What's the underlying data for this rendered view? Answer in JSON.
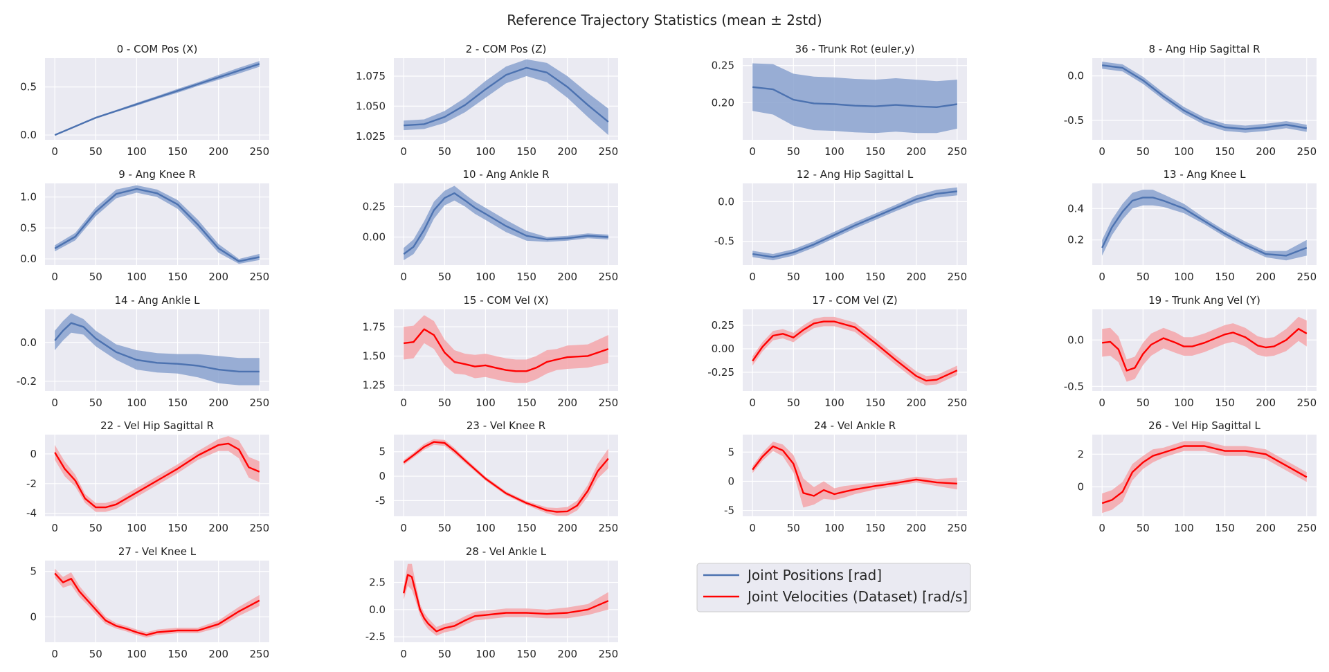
{
  "figure": {
    "title": "Reference Trajectory Statistics (mean ± 2std)"
  },
  "colors": {
    "positions_line": "#4c72b0",
    "positions_band": "#8aa2cf",
    "velocities_line": "#ff0000",
    "velocities_band": "#f4a6aa",
    "axes_background": "#eaeaf2",
    "grid": "#ffffff"
  },
  "legend": {
    "placement": "grid cell row 5, column 3",
    "entries": [
      {
        "label": "Joint Positions [rad]",
        "kind": "positions"
      },
      {
        "label": "Joint Velocities (Dataset) [rad/s]",
        "kind": "velocities"
      }
    ]
  },
  "chart_data": [
    {
      "type": "line",
      "title": "0 - COM Pos (X)",
      "kind": "positions",
      "xlim": [
        -12,
        262
      ],
      "ylim": [
        -0.05,
        0.8
      ],
      "xticks": [
        "0",
        "50",
        "100",
        "150",
        "200",
        "250"
      ],
      "yticks": [
        "0.0",
        "0.5"
      ],
      "x": [
        0,
        25,
        50,
        75,
        100,
        125,
        150,
        175,
        200,
        225,
        250
      ],
      "mean": [
        0.0,
        0.09,
        0.18,
        0.25,
        0.32,
        0.39,
        0.46,
        0.53,
        0.6,
        0.67,
        0.74
      ],
      "std2": [
        0.0,
        0.005,
        0.01,
        0.01,
        0.015,
        0.015,
        0.02,
        0.02,
        0.025,
        0.03,
        0.03
      ]
    },
    {
      "type": "line",
      "title": "2 - COM Pos (Z)",
      "kind": "positions",
      "xlim": [
        -12,
        262
      ],
      "ylim": [
        1.022,
        1.09
      ],
      "xticks": [
        "0",
        "50",
        "100",
        "150",
        "200",
        "250"
      ],
      "yticks": [
        "1.025",
        "1.050",
        "1.075"
      ],
      "x": [
        0,
        25,
        50,
        75,
        100,
        125,
        150,
        175,
        200,
        225,
        250
      ],
      "mean": [
        1.034,
        1.035,
        1.041,
        1.051,
        1.064,
        1.076,
        1.082,
        1.078,
        1.066,
        1.051,
        1.037
      ],
      "std2": [
        0.004,
        0.004,
        0.005,
        0.006,
        0.007,
        0.007,
        0.007,
        0.008,
        0.009,
        0.01,
        0.011
      ]
    },
    {
      "type": "line",
      "title": "36 - Trunk Rot (euler,y)",
      "kind": "positions",
      "xlim": [
        -12,
        262
      ],
      "ylim": [
        0.15,
        0.26
      ],
      "xticks": [
        "0",
        "50",
        "100",
        "150",
        "200",
        "250"
      ],
      "yticks": [
        "0.20",
        "0.25"
      ],
      "x": [
        0,
        25,
        50,
        75,
        100,
        125,
        150,
        175,
        200,
        225,
        250
      ],
      "mean": [
        0.221,
        0.218,
        0.204,
        0.199,
        0.198,
        0.196,
        0.195,
        0.197,
        0.195,
        0.194,
        0.198
      ],
      "std2": [
        0.032,
        0.034,
        0.035,
        0.036,
        0.036,
        0.036,
        0.036,
        0.036,
        0.036,
        0.035,
        0.033
      ]
    },
    {
      "type": "line",
      "title": "8 - Ang Hip Sagittal R",
      "kind": "positions",
      "xlim": [
        -12,
        262
      ],
      "ylim": [
        -0.72,
        0.2
      ],
      "xticks": [
        "0",
        "50",
        "100",
        "150",
        "200",
        "250"
      ],
      "yticks": [
        "-0.5",
        "0.0"
      ],
      "x": [
        0,
        25,
        50,
        75,
        100,
        125,
        150,
        175,
        200,
        225,
        250
      ],
      "mean": [
        0.12,
        0.09,
        -0.05,
        -0.23,
        -0.39,
        -0.51,
        -0.58,
        -0.6,
        -0.58,
        -0.55,
        -0.59
      ],
      "std2": [
        0.04,
        0.04,
        0.04,
        0.04,
        0.04,
        0.04,
        0.04,
        0.04,
        0.04,
        0.04,
        0.04
      ]
    },
    {
      "type": "line",
      "title": "9 - Ang Knee R",
      "kind": "positions",
      "xlim": [
        -12,
        262
      ],
      "ylim": [
        -0.1,
        1.22
      ],
      "xticks": [
        "0",
        "50",
        "100",
        "150",
        "200",
        "250"
      ],
      "yticks": [
        "0.0",
        "0.5",
        "1.0"
      ],
      "x": [
        0,
        25,
        50,
        75,
        100,
        125,
        150,
        175,
        200,
        225,
        250
      ],
      "mean": [
        0.17,
        0.36,
        0.76,
        1.05,
        1.13,
        1.06,
        0.88,
        0.55,
        0.17,
        -0.04,
        0.03
      ],
      "std2": [
        0.05,
        0.06,
        0.07,
        0.07,
        0.06,
        0.06,
        0.07,
        0.08,
        0.07,
        0.04,
        0.05
      ]
    },
    {
      "type": "line",
      "title": "10 - Ang Ankle R",
      "kind": "positions",
      "xlim": [
        -12,
        262
      ],
      "ylim": [
        -0.23,
        0.44
      ],
      "xticks": [
        "0",
        "50",
        "100",
        "150",
        "200",
        "250"
      ],
      "yticks": [
        "0.00",
        "0.25"
      ],
      "x": [
        0,
        12,
        25,
        37,
        50,
        62,
        75,
        87,
        100,
        125,
        150,
        175,
        200,
        225,
        250
      ],
      "mean": [
        -0.14,
        -0.08,
        0.06,
        0.22,
        0.32,
        0.36,
        0.3,
        0.24,
        0.19,
        0.09,
        0.01,
        -0.02,
        -0.01,
        0.01,
        0.0
      ],
      "std2": [
        0.05,
        0.06,
        0.07,
        0.07,
        0.06,
        0.06,
        0.05,
        0.05,
        0.05,
        0.05,
        0.04,
        0.02,
        0.02,
        0.02,
        0.02
      ]
    },
    {
      "type": "line",
      "title": "12 - Ang Hip Sagittal L",
      "kind": "positions",
      "xlim": [
        -12,
        262
      ],
      "ylim": [
        -0.8,
        0.23
      ],
      "xticks": [
        "0",
        "50",
        "100",
        "150",
        "200",
        "250"
      ],
      "yticks": [
        "-0.5",
        "0.0"
      ],
      "x": [
        0,
        25,
        50,
        75,
        100,
        125,
        150,
        175,
        200,
        225,
        250
      ],
      "mean": [
        -0.66,
        -0.7,
        -0.64,
        -0.54,
        -0.42,
        -0.3,
        -0.19,
        -0.08,
        0.03,
        0.1,
        0.13
      ],
      "std2": [
        0.04,
        0.04,
        0.04,
        0.04,
        0.04,
        0.04,
        0.04,
        0.04,
        0.05,
        0.05,
        0.05
      ]
    },
    {
      "type": "line",
      "title": "13 - Ang Knee L",
      "kind": "positions",
      "xlim": [
        -12,
        262
      ],
      "ylim": [
        0.04,
        0.56
      ],
      "xticks": [
        "0",
        "50",
        "100",
        "150",
        "200",
        "250"
      ],
      "yticks": [
        "0.2",
        "0.4"
      ],
      "x": [
        0,
        12,
        25,
        37,
        50,
        62,
        75,
        100,
        125,
        150,
        175,
        200,
        225,
        250
      ],
      "mean": [
        0.15,
        0.28,
        0.38,
        0.45,
        0.47,
        0.47,
        0.45,
        0.4,
        0.32,
        0.24,
        0.17,
        0.11,
        0.1,
        0.15
      ],
      "std2": [
        0.05,
        0.05,
        0.05,
        0.05,
        0.05,
        0.05,
        0.04,
        0.03,
        0.02,
        0.02,
        0.02,
        0.02,
        0.03,
        0.05
      ]
    },
    {
      "type": "line",
      "title": "14 - Ang Ankle L",
      "kind": "positions",
      "xlim": [
        -12,
        262
      ],
      "ylim": [
        -0.25,
        0.17
      ],
      "xticks": [
        "0",
        "50",
        "100",
        "150",
        "200",
        "250"
      ],
      "yticks": [
        "-0.2",
        "0.0"
      ],
      "x": [
        0,
        10,
        20,
        35,
        50,
        75,
        100,
        125,
        150,
        175,
        200,
        225,
        250
      ],
      "mean": [
        0.01,
        0.06,
        0.1,
        0.08,
        0.02,
        -0.05,
        -0.09,
        -0.105,
        -0.11,
        -0.12,
        -0.14,
        -0.15,
        -0.15
      ],
      "std2": [
        0.05,
        0.05,
        0.05,
        0.04,
        0.04,
        0.04,
        0.05,
        0.05,
        0.05,
        0.06,
        0.07,
        0.07,
        0.07
      ]
    },
    {
      "type": "line",
      "title": "15 - COM Vel (X)",
      "kind": "velocities",
      "xlim": [
        -12,
        262
      ],
      "ylim": [
        1.2,
        1.9
      ],
      "xticks": [
        "0",
        "50",
        "100",
        "150",
        "200",
        "250"
      ],
      "yticks": [
        "1.25",
        "1.50",
        "1.75"
      ],
      "x": [
        0,
        12,
        25,
        37,
        50,
        62,
        75,
        87,
        100,
        112,
        125,
        137,
        150,
        162,
        175,
        187,
        200,
        225,
        250
      ],
      "mean": [
        1.61,
        1.62,
        1.73,
        1.68,
        1.53,
        1.45,
        1.43,
        1.41,
        1.42,
        1.4,
        1.38,
        1.37,
        1.37,
        1.4,
        1.45,
        1.47,
        1.49,
        1.5,
        1.56
      ],
      "std2": [
        0.14,
        0.14,
        0.12,
        0.12,
        0.11,
        0.1,
        0.09,
        0.1,
        0.1,
        0.1,
        0.1,
        0.1,
        0.1,
        0.1,
        0.1,
        0.09,
        0.1,
        0.1,
        0.12
      ]
    },
    {
      "type": "line",
      "title": "17 - COM Vel (Z)",
      "kind": "velocities",
      "xlim": [
        -12,
        262
      ],
      "ylim": [
        -0.45,
        0.42
      ],
      "xticks": [
        "0",
        "50",
        "100",
        "150",
        "200",
        "250"
      ],
      "yticks": [
        "-0.25",
        "0.00",
        "0.25"
      ],
      "x": [
        0,
        12,
        25,
        37,
        50,
        62,
        75,
        87,
        100,
        125,
        150,
        175,
        200,
        212,
        225,
        250
      ],
      "mean": [
        -0.13,
        0.02,
        0.14,
        0.16,
        0.12,
        0.2,
        0.27,
        0.29,
        0.29,
        0.23,
        0.06,
        -0.12,
        -0.29,
        -0.34,
        -0.33,
        -0.23
      ],
      "std2": [
        0.05,
        0.05,
        0.05,
        0.05,
        0.05,
        0.05,
        0.05,
        0.05,
        0.05,
        0.05,
        0.05,
        0.05,
        0.05,
        0.05,
        0.05,
        0.05
      ]
    },
    {
      "type": "line",
      "title": "19 - Trunk Ang Vel (Y)",
      "kind": "velocities",
      "xlim": [
        -12,
        262
      ],
      "ylim": [
        -0.55,
        0.33
      ],
      "xticks": [
        "0",
        "50",
        "100",
        "150",
        "200",
        "250"
      ],
      "yticks": [
        "-0.5",
        "0.0"
      ],
      "x": [
        0,
        10,
        20,
        30,
        40,
        50,
        60,
        75,
        90,
        100,
        110,
        125,
        150,
        160,
        175,
        190,
        200,
        210,
        225,
        240,
        250
      ],
      "mean": [
        -0.03,
        -0.02,
        -0.1,
        -0.33,
        -0.3,
        -0.15,
        -0.05,
        0.02,
        -0.03,
        -0.07,
        -0.07,
        -0.03,
        0.06,
        0.08,
        0.03,
        -0.06,
        -0.08,
        -0.07,
        0.0,
        0.12,
        0.07
      ],
      "std2": [
        0.15,
        0.15,
        0.14,
        0.12,
        0.12,
        0.12,
        0.12,
        0.11,
        0.11,
        0.1,
        0.1,
        0.1,
        0.1,
        0.1,
        0.1,
        0.1,
        0.1,
        0.1,
        0.12,
        0.13,
        0.14
      ]
    },
    {
      "type": "line",
      "title": "22 - Vel Hip Sagittal R",
      "kind": "velocities",
      "xlim": [
        -12,
        262
      ],
      "ylim": [
        -4.2,
        1.3
      ],
      "xticks": [
        "0",
        "50",
        "100",
        "150",
        "200",
        "250"
      ],
      "yticks": [
        "-4",
        "-2",
        "0"
      ],
      "x": [
        0,
        12,
        25,
        37,
        50,
        62,
        75,
        100,
        125,
        150,
        175,
        200,
        212,
        225,
        237,
        250
      ],
      "mean": [
        0.1,
        -1.0,
        -1.8,
        -3.0,
        -3.6,
        -3.6,
        -3.4,
        -2.6,
        -1.8,
        -1.0,
        -0.1,
        0.6,
        0.7,
        0.3,
        -0.9,
        -1.2
      ],
      "std2": [
        0.5,
        0.5,
        0.4,
        0.3,
        0.3,
        0.3,
        0.3,
        0.3,
        0.3,
        0.3,
        0.3,
        0.4,
        0.5,
        0.6,
        0.7,
        0.7
      ]
    },
    {
      "type": "line",
      "title": "23 - Vel Knee R",
      "kind": "velocities",
      "xlim": [
        -12,
        262
      ],
      "ylim": [
        -8.2,
        8.5
      ],
      "xticks": [
        "0",
        "50",
        "100",
        "150",
        "200",
        "250"
      ],
      "yticks": [
        "-5",
        "0",
        "5"
      ],
      "x": [
        0,
        12,
        25,
        37,
        50,
        62,
        75,
        100,
        125,
        150,
        175,
        187,
        200,
        212,
        225,
        237,
        250
      ],
      "mean": [
        2.8,
        4.3,
        6.0,
        7.0,
        6.8,
        5.2,
        3.2,
        -0.5,
        -3.5,
        -5.5,
        -7.0,
        -7.3,
        -7.2,
        -6.0,
        -3.0,
        1.0,
        3.6
      ],
      "std2": [
        0.5,
        0.5,
        0.6,
        0.6,
        0.6,
        0.6,
        0.5,
        0.4,
        0.4,
        0.4,
        0.6,
        0.8,
        0.9,
        1.0,
        1.2,
        1.5,
        2.0
      ]
    },
    {
      "type": "line",
      "title": "24 - Vel Ankle R",
      "kind": "velocities",
      "xlim": [
        -12,
        262
      ],
      "ylim": [
        -6,
        8
      ],
      "xticks": [
        "0",
        "50",
        "100",
        "150",
        "200",
        "250"
      ],
      "yticks": [
        "-5",
        "0",
        "5"
      ],
      "x": [
        0,
        12,
        25,
        37,
        50,
        62,
        75,
        87,
        100,
        112,
        125,
        150,
        175,
        200,
        225,
        250
      ],
      "mean": [
        2.0,
        4.2,
        6.0,
        5.3,
        3.0,
        -2.0,
        -2.5,
        -1.5,
        -2.2,
        -1.8,
        -1.4,
        -0.8,
        -0.3,
        0.3,
        -0.2,
        -0.4
      ],
      "std2": [
        0.6,
        0.7,
        0.8,
        1.0,
        1.5,
        2.5,
        1.5,
        1.5,
        1.0,
        1.0,
        0.8,
        0.6,
        0.5,
        0.5,
        0.6,
        1.0
      ]
    },
    {
      "type": "line",
      "title": "26 - Vel Hip Sagittal L",
      "kind": "velocities",
      "xlim": [
        -12,
        262
      ],
      "ylim": [
        -1.8,
        3.2
      ],
      "xticks": [
        "0",
        "50",
        "100",
        "150",
        "200",
        "250"
      ],
      "yticks": [
        "0",
        "2"
      ],
      "x": [
        0,
        12,
        25,
        37,
        50,
        62,
        75,
        100,
        125,
        150,
        175,
        200,
        225,
        250
      ],
      "mean": [
        -1.0,
        -0.8,
        -0.3,
        0.9,
        1.5,
        1.9,
        2.1,
        2.5,
        2.5,
        2.2,
        2.2,
        2.0,
        1.3,
        0.6
      ],
      "std2": [
        0.6,
        0.6,
        0.6,
        0.5,
        0.4,
        0.4,
        0.3,
        0.3,
        0.3,
        0.3,
        0.3,
        0.3,
        0.3,
        0.3
      ]
    },
    {
      "type": "line",
      "title": "27 - Vel Knee L",
      "kind": "velocities",
      "xlim": [
        -12,
        262
      ],
      "ylim": [
        -2.8,
        6.2
      ],
      "xticks": [
        "0",
        "50",
        "100",
        "150",
        "200",
        "250"
      ],
      "yticks": [
        "0",
        "5"
      ],
      "x": [
        0,
        10,
        20,
        30,
        40,
        50,
        62,
        75,
        87,
        100,
        112,
        125,
        150,
        175,
        200,
        225,
        250
      ],
      "mean": [
        4.8,
        3.8,
        4.2,
        2.8,
        1.8,
        0.8,
        -0.4,
        -1.0,
        -1.3,
        -1.7,
        -2.0,
        -1.7,
        -1.5,
        -1.5,
        -0.8,
        0.6,
        1.8
      ],
      "std2": [
        0.5,
        0.6,
        0.7,
        0.6,
        0.5,
        0.5,
        0.4,
        0.3,
        0.3,
        0.3,
        0.3,
        0.3,
        0.3,
        0.3,
        0.4,
        0.5,
        0.6
      ]
    },
    {
      "type": "line",
      "title": "28 - Vel Ankle L",
      "kind": "velocities",
      "xlim": [
        -12,
        262
      ],
      "ylim": [
        -3.0,
        4.5
      ],
      "xticks": [
        "0",
        "50",
        "100",
        "150",
        "200",
        "250"
      ],
      "yticks": [
        "-2.5",
        "0.0",
        "2.5"
      ],
      "x": [
        0,
        5,
        10,
        15,
        20,
        25,
        30,
        40,
        50,
        62,
        75,
        87,
        100,
        125,
        150,
        175,
        200,
        225,
        250
      ],
      "mean": [
        1.5,
        3.2,
        3.0,
        1.5,
        0.0,
        -0.8,
        -1.3,
        -2.0,
        -1.7,
        -1.5,
        -1.0,
        -0.6,
        -0.5,
        -0.3,
        -0.3,
        -0.4,
        -0.3,
        0.0,
        0.8
      ],
      "std2": [
        0.6,
        1.0,
        1.2,
        0.8,
        0.5,
        0.5,
        0.5,
        0.4,
        0.4,
        0.4,
        0.4,
        0.4,
        0.4,
        0.4,
        0.4,
        0.4,
        0.5,
        0.5,
        0.8
      ]
    }
  ]
}
